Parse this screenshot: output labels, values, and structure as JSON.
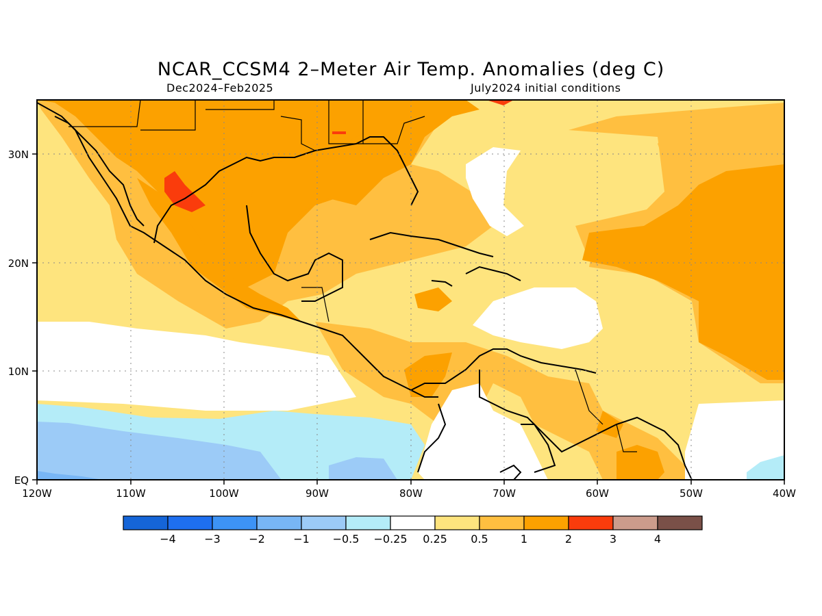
{
  "title": "NCAR_CCSM4 2–Meter Air Temp. Anomalies (deg C)",
  "subtitle_left": "Dec2024–Feb2025",
  "subtitle_right": "July2024 initial conditions",
  "axes": {
    "lon_ticks": [
      "120W",
      "110W",
      "100W",
      "90W",
      "80W",
      "70W",
      "60W",
      "50W",
      "40W"
    ],
    "lat_ticks": [
      "EQ",
      "10N",
      "20N",
      "30N"
    ],
    "lon_range": [
      -120,
      -40
    ],
    "lat_range": [
      0,
      35
    ],
    "grid": "dotted"
  },
  "colorbar": {
    "labels": [
      "−4",
      "−3",
      "−2",
      "−1",
      "−0.5",
      "−0.25",
      "0.25",
      "0.5",
      "1",
      "2",
      "3",
      "4"
    ],
    "colors": [
      "#1565d8",
      "#1e6ff0",
      "#3d93f5",
      "#78b6f5",
      "#9ccbf7",
      "#b4ecf8",
      "#ffffff",
      "#fee47e",
      "#ffbf40",
      "#fca100",
      "#fa3c0c",
      "#cc9c8c",
      "#7a5048"
    ]
  },
  "legend_meaning": {
    "white": "-0.25 to 0.25",
    "light_yellow": "0.25 to 0.5",
    "light_orange": "0.5 to 1",
    "orange": "1 to 2",
    "red": "2 to 3"
  }
}
